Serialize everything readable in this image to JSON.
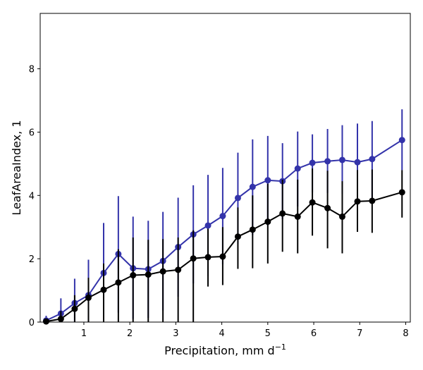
{
  "chart_data": {
    "type": "line",
    "title": "",
    "xlabel": "Precipitation,  mm d",
    "xlabel_sup": "−1",
    "ylabel": "LeafAreaIndex,  1",
    "xlim": [
      0.05,
      8.1
    ],
    "ylim": [
      0,
      9.75
    ],
    "xticks": [
      1,
      2,
      3,
      4,
      5,
      6,
      7,
      8
    ],
    "yticks": [
      0,
      2,
      4,
      6,
      8
    ],
    "grid": false,
    "series": [
      {
        "name": "blue",
        "color": "#3333aa",
        "x": [
          0.18,
          0.5,
          0.8,
          1.1,
          1.43,
          1.75,
          2.07,
          2.4,
          2.72,
          3.05,
          3.38,
          3.7,
          4.02,
          4.35,
          4.67,
          5.0,
          5.32,
          5.65,
          5.97,
          6.3,
          6.62,
          6.95,
          7.27,
          7.92
        ],
        "y": [
          0.05,
          0.27,
          0.6,
          0.85,
          1.55,
          2.15,
          1.7,
          1.67,
          1.93,
          2.37,
          2.77,
          3.05,
          3.35,
          3.92,
          4.27,
          4.48,
          4.45,
          4.85,
          5.03,
          5.08,
          5.12,
          5.05,
          5.15,
          5.75
        ],
        "err_low": [
          0.0,
          0.0,
          0.0,
          0.0,
          0.0,
          0.3,
          0.1,
          0.13,
          0.37,
          0.8,
          1.22,
          1.45,
          1.83,
          2.48,
          2.75,
          3.05,
          3.25,
          3.65,
          4.1,
          4.08,
          4.05,
          3.82,
          3.93,
          4.8
        ],
        "err_high": [
          0.2,
          0.75,
          1.37,
          1.97,
          3.13,
          3.98,
          3.33,
          3.2,
          3.48,
          3.93,
          4.32,
          4.65,
          4.87,
          5.35,
          5.77,
          5.88,
          5.65,
          6.02,
          5.93,
          6.1,
          6.22,
          6.27,
          6.35,
          6.72
        ]
      },
      {
        "name": "black",
        "color": "#000000",
        "x": [
          0.18,
          0.5,
          0.8,
          1.1,
          1.43,
          1.75,
          2.07,
          2.4,
          2.72,
          3.05,
          3.38,
          3.7,
          4.02,
          4.35,
          4.67,
          5.0,
          5.32,
          5.65,
          5.97,
          6.3,
          6.62,
          6.95,
          7.27,
          7.92
        ],
        "y": [
          0.02,
          0.1,
          0.42,
          0.77,
          1.02,
          1.25,
          1.48,
          1.5,
          1.6,
          1.65,
          2.01,
          2.05,
          2.07,
          2.7,
          2.92,
          3.17,
          3.43,
          3.33,
          3.78,
          3.6,
          3.33,
          3.81,
          3.83,
          4.1
        ],
        "err_low": [
          0.0,
          0.0,
          0.0,
          0.0,
          0.0,
          0.0,
          0.0,
          0.0,
          0.0,
          0.0,
          0.0,
          1.12,
          1.17,
          1.68,
          1.7,
          1.85,
          2.22,
          2.17,
          2.73,
          2.33,
          2.17,
          2.85,
          2.82,
          3.3
        ],
        "err_high": [
          0.1,
          0.35,
          0.85,
          1.4,
          1.85,
          2.3,
          2.67,
          2.6,
          2.62,
          2.67,
          2.9,
          2.95,
          3.0,
          3.62,
          4.0,
          4.37,
          4.5,
          4.5,
          4.85,
          4.78,
          4.45,
          4.8,
          4.82,
          4.8
        ]
      }
    ]
  }
}
